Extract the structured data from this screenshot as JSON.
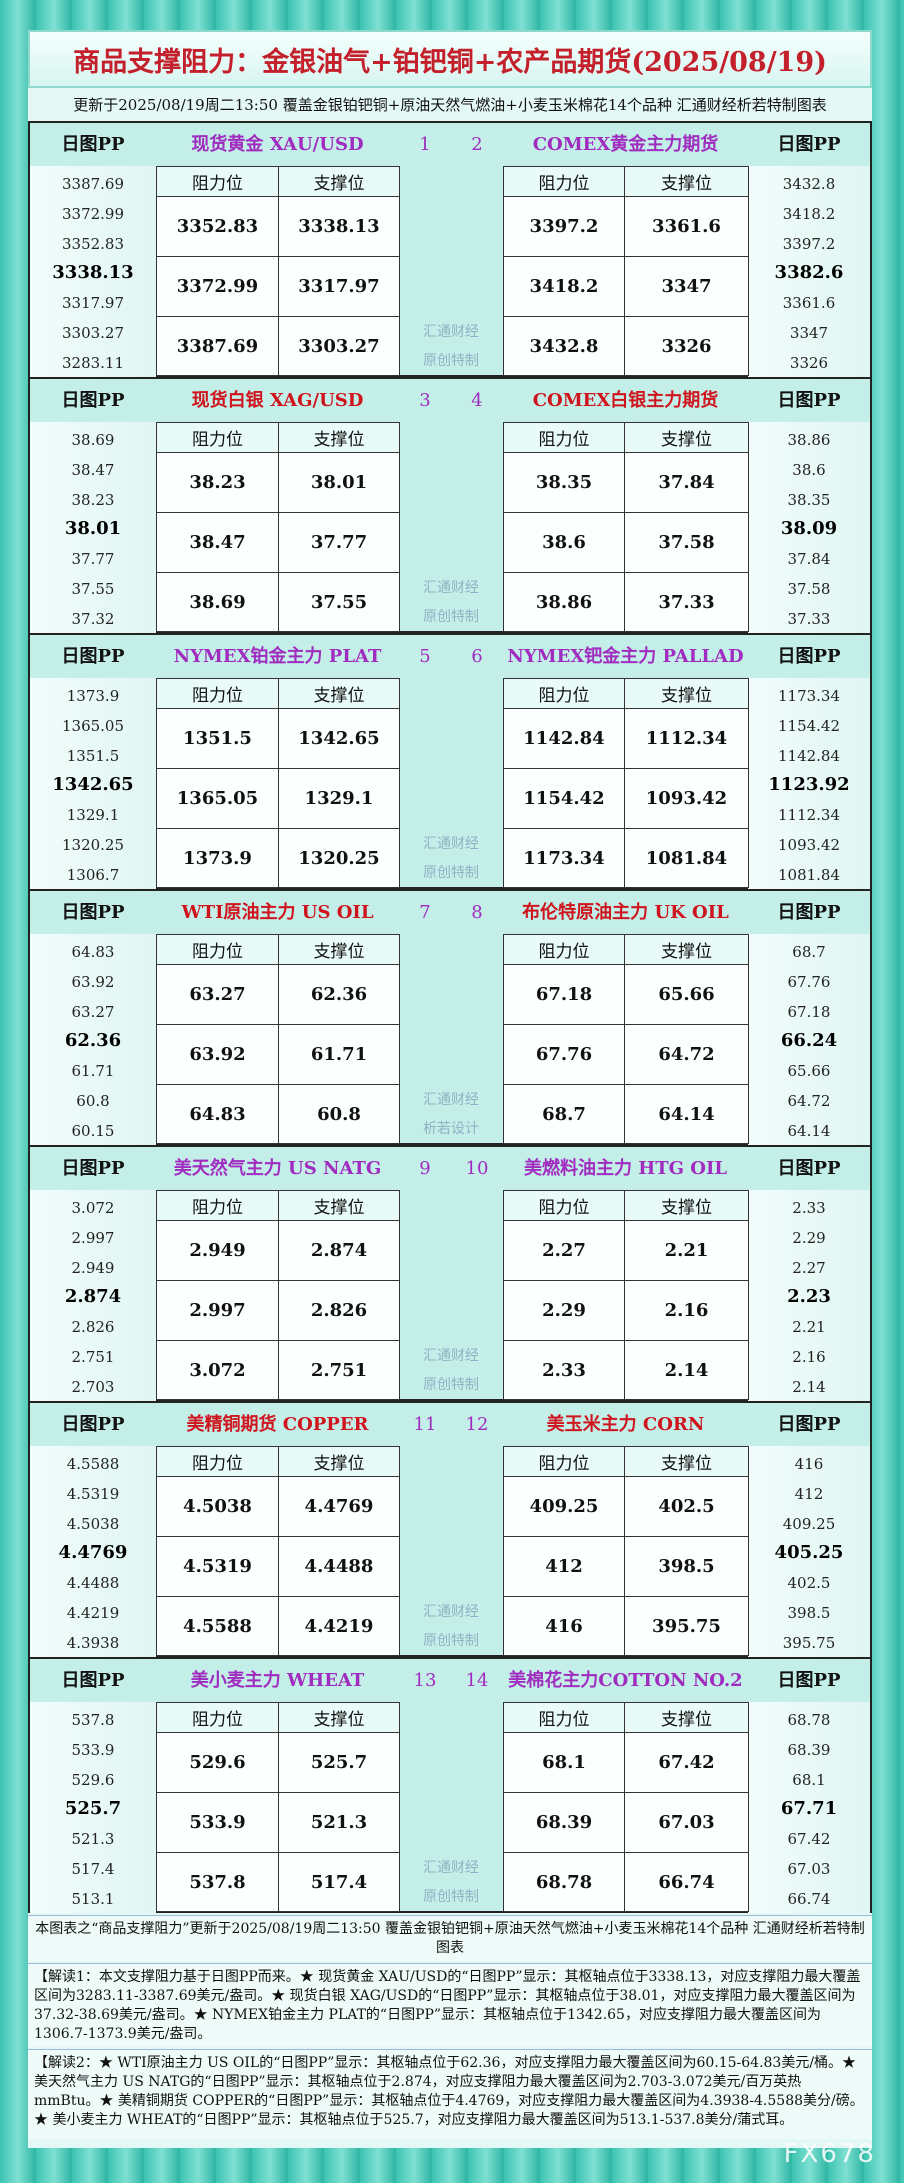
{
  "header": {
    "title": "商品支撑阻力：金银油气+铂钯铜+农产品期货(2025/08/19)",
    "subtitle": "更新于2025/08/19周二13:50  覆盖金银铂钯铜+原油天然气燃油+小麦玉米棉花14个品种  汇通财经析若特制图表"
  },
  "pp_label": "日图PP",
  "columns": [
    "阻力位",
    "支撑位"
  ],
  "sections": [
    {
      "left": {
        "name": "现货黄金 XAU/USD",
        "number": "1",
        "pp": [
          "3387.69",
          "3372.99",
          "3352.83",
          "3338.13",
          "3317.97",
          "3303.27",
          "3283.11"
        ],
        "rows": [
          [
            "3352.83",
            "3338.13"
          ],
          [
            "3372.99",
            "3317.97"
          ],
          [
            "3387.69",
            "3303.27"
          ]
        ]
      },
      "right": {
        "name": "COMEX黄金主力期货",
        "number": "2",
        "pp": [
          "3432.8",
          "3418.2",
          "3397.2",
          "3382.6",
          "3361.6",
          "3347",
          "3326"
        ],
        "rows": [
          [
            "3397.2",
            "3361.6"
          ],
          [
            "3418.2",
            "3347"
          ],
          [
            "3432.8",
            "3326"
          ]
        ]
      },
      "watermark": [
        "汇通财经",
        "原创特制"
      ]
    },
    {
      "left": {
        "name": "现货白银 XAG/USD",
        "number": "3",
        "pp": [
          "38.69",
          "38.47",
          "38.23",
          "38.01",
          "37.77",
          "37.55",
          "37.32"
        ],
        "rows": [
          [
            "38.23",
            "38.01"
          ],
          [
            "38.47",
            "37.77"
          ],
          [
            "38.69",
            "37.55"
          ]
        ]
      },
      "right": {
        "name": "COMEX白银主力期货",
        "number": "4",
        "pp": [
          "38.86",
          "38.6",
          "38.35",
          "38.09",
          "37.84",
          "37.58",
          "37.33"
        ],
        "rows": [
          [
            "38.35",
            "37.84"
          ],
          [
            "38.6",
            "37.58"
          ],
          [
            "38.86",
            "37.33"
          ]
        ]
      },
      "watermark": [
        "汇通财经",
        "原创特制"
      ]
    },
    {
      "left": {
        "name": "NYMEX铂金主力 PLAT",
        "number": "5",
        "pp": [
          "1373.9",
          "1365.05",
          "1351.5",
          "1342.65",
          "1329.1",
          "1320.25",
          "1306.7"
        ],
        "rows": [
          [
            "1351.5",
            "1342.65"
          ],
          [
            "1365.05",
            "1329.1"
          ],
          [
            "1373.9",
            "1320.25"
          ]
        ]
      },
      "right": {
        "name": "NYMEX钯金主力 PALLAD",
        "number": "6",
        "pp": [
          "1173.34",
          "1154.42",
          "1142.84",
          "1123.92",
          "1112.34",
          "1093.42",
          "1081.84"
        ],
        "rows": [
          [
            "1142.84",
            "1112.34"
          ],
          [
            "1154.42",
            "1093.42"
          ],
          [
            "1173.34",
            "1081.84"
          ]
        ]
      },
      "watermark": [
        "汇通财经",
        "原创特制"
      ]
    },
    {
      "left": {
        "name": "WTI原油主力 US OIL",
        "number": "7",
        "pp": [
          "64.83",
          "63.92",
          "63.27",
          "62.36",
          "61.71",
          "60.8",
          "60.15"
        ],
        "rows": [
          [
            "63.27",
            "62.36"
          ],
          [
            "63.92",
            "61.71"
          ],
          [
            "64.83",
            "60.8"
          ]
        ]
      },
      "right": {
        "name": "布伦特原油主力 UK OIL",
        "number": "8",
        "pp": [
          "68.7",
          "67.76",
          "67.18",
          "66.24",
          "65.66",
          "64.72",
          "64.14"
        ],
        "rows": [
          [
            "67.18",
            "65.66"
          ],
          [
            "67.76",
            "64.72"
          ],
          [
            "68.7",
            "64.14"
          ]
        ]
      },
      "watermark": [
        "汇通财经",
        "析若设计"
      ]
    },
    {
      "left": {
        "name": "美天然气主力 US NATG",
        "number": "9",
        "pp": [
          "3.072",
          "2.997",
          "2.949",
          "2.874",
          "2.826",
          "2.751",
          "2.703"
        ],
        "rows": [
          [
            "2.949",
            "2.874"
          ],
          [
            "2.997",
            "2.826"
          ],
          [
            "3.072",
            "2.751"
          ]
        ]
      },
      "right": {
        "name": "美燃料油主力 HTG OIL",
        "number": "10",
        "pp": [
          "2.33",
          "2.29",
          "2.27",
          "2.23",
          "2.21",
          "2.16",
          "2.14"
        ],
        "rows": [
          [
            "2.27",
            "2.21"
          ],
          [
            "2.29",
            "2.16"
          ],
          [
            "2.33",
            "2.14"
          ]
        ]
      },
      "watermark": [
        "汇通财经",
        "原创特制"
      ]
    },
    {
      "left": {
        "name": "美精铜期货 COPPER",
        "number": "11",
        "pp": [
          "4.5588",
          "4.5319",
          "4.5038",
          "4.4769",
          "4.4488",
          "4.4219",
          "4.3938"
        ],
        "rows": [
          [
            "4.5038",
            "4.4769"
          ],
          [
            "4.5319",
            "4.4488"
          ],
          [
            "4.5588",
            "4.4219"
          ]
        ]
      },
      "right": {
        "name": "美玉米主力 CORN",
        "number": "12",
        "pp": [
          "416",
          "412",
          "409.25",
          "405.25",
          "402.5",
          "398.5",
          "395.75"
        ],
        "rows": [
          [
            "409.25",
            "402.5"
          ],
          [
            "412",
            "398.5"
          ],
          [
            "416",
            "395.75"
          ]
        ]
      },
      "watermark": [
        "汇通财经",
        "原创特制"
      ]
    },
    {
      "left": {
        "name": "美小麦主力 WHEAT",
        "number": "13",
        "pp": [
          "537.8",
          "533.9",
          "529.6",
          "525.7",
          "521.3",
          "517.4",
          "513.1"
        ],
        "rows": [
          [
            "529.6",
            "525.7"
          ],
          [
            "533.9",
            "521.3"
          ],
          [
            "537.8",
            "517.4"
          ]
        ]
      },
      "right": {
        "name": "美棉花主力COTTON NO.2",
        "number": "14",
        "pp": [
          "68.78",
          "68.39",
          "68.1",
          "67.71",
          "67.42",
          "67.03",
          "66.74"
        ],
        "rows": [
          [
            "68.1",
            "67.42"
          ],
          [
            "68.39",
            "67.03"
          ],
          [
            "68.78",
            "66.74"
          ]
        ]
      },
      "watermark": [
        "汇通财经",
        "原创特制"
      ]
    }
  ],
  "footer": {
    "note": "本图表之“商品支撑阻力”更新于2025/08/19周二13:50 覆盖金银铂钯铜+原油天然气燃油+小麦玉米棉花14个品种 汇通财经析若特制图表",
    "explain1": "【解读1：本文支撑阻力基于日图PP而来。★ 现货黄金 XAU/USD的“日图PP”显示：其枢轴点位于3338.13，对应支撑阻力最大覆盖区间为3283.11-3387.69美元/盎司。★ 现货白银 XAG/USD的“日图PP”显示：其枢轴点位于38.01，对应支撑阻力最大覆盖区间为37.32-38.69美元/盎司。★ NYMEX铂金主力 PLAT的“日图PP”显示：其枢轴点位于1342.65，对应支撑阻力最大覆盖区间为1306.7-1373.9美元/盎司。",
    "explain2": "【解读2：★ WTI原油主力 US OIL的“日图PP”显示：其枢轴点位于62.36，对应支撑阻力最大覆盖区间为60.15-64.83美元/桶。★ 美天然气主力 US NATG的“日图PP”显示：其枢轴点位于2.874，对应支撑阻力最大覆盖区间为2.703-3.072美元/百万英热mmBtu。★ 美精铜期货 COPPER的“日图PP”显示：其枢轴点位于4.4769，对应支撑阻力最大覆盖区间为4.3938-4.5588美分/磅。★ 美小麦主力 WHEAT的“日图PP”显示：其枢轴点位于525.7，对应支撑阻力最大覆盖区间为513.1-537.8美分/蒲式耳。"
  },
  "logo": "FX678"
}
